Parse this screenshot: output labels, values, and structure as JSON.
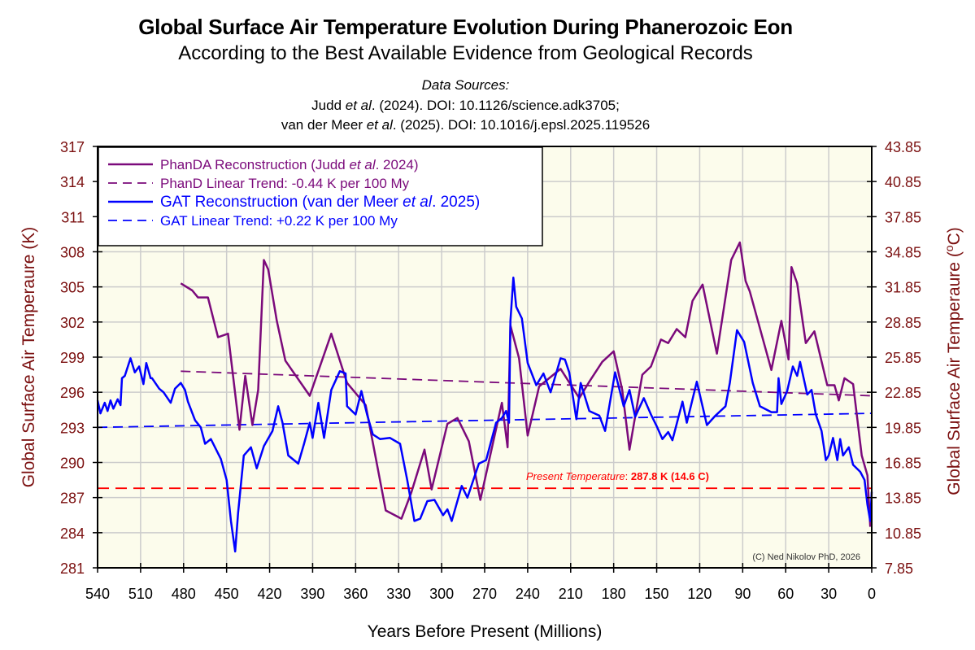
{
  "header": {
    "title": "Global Surface Air Temperature Evolution During Phanerozoic Eon",
    "subtitle": "According to the Best Available Evidence from Geological Records",
    "sources_label": "Data Sources:",
    "source_1_pre": "Judd ",
    "source_1_etal": "et al",
    "source_1_post": ". (2024). DOI: 10.1126/science.adk3705;",
    "source_2_pre": "van der Meer ",
    "source_2_etal": "et al",
    "source_2_post": ". (2025). DOI: 10.1016/j.epsl.2025.119526"
  },
  "chart_data": {
    "type": "line",
    "title": "Global Surface Air Temperature Evolution During Phanerozoic Eon",
    "xlabel": "Years Before Present (Millions)",
    "ylabel": "Global Surface Air Temperaure (K)",
    "y2label": "Global Surface Air Temperaure (°C)",
    "xlim": [
      540,
      0
    ],
    "ylim": [
      281,
      317
    ],
    "x_ticks": [
      540,
      510,
      480,
      450,
      420,
      390,
      360,
      330,
      300,
      270,
      240,
      210,
      180,
      150,
      120,
      90,
      60,
      30,
      0
    ],
    "y_ticks": [
      281,
      284,
      287,
      290,
      293,
      296,
      299,
      302,
      305,
      308,
      311,
      314,
      317
    ],
    "y2_ticks": [
      "7.85",
      "10.85",
      "13.85",
      "16.85",
      "19.85",
      "22.85",
      "25.85",
      "28.85",
      "31.85",
      "34.85",
      "37.85",
      "40.85",
      "43.85"
    ],
    "grid": true,
    "legend_position": "top-left",
    "colors": {
      "phanda": "#7b0a7b",
      "gat": "#0000ff",
      "present": "#ff0000",
      "axis_label": "#7b1010",
      "plot_bg": "#fcfcec",
      "grid": "#cccccc"
    },
    "series": [
      {
        "name": "PhanDA Reconstruction (Judd et al. 2024)",
        "key": "phanda",
        "style": "solid",
        "x": [
          482,
          474,
          470,
          463,
          456,
          449,
          441,
          437,
          432,
          428,
          424,
          421,
          415,
          409,
          392,
          377,
          366,
          353,
          339,
          328,
          321,
          312,
          307,
          296,
          289,
          281,
          273,
          258,
          254,
          252,
          246,
          240,
          232,
          217,
          204,
          197,
          188,
          180,
          174,
          169,
          160,
          154,
          147,
          142,
          136,
          130,
          125,
          118,
          108,
          98,
          92,
          88,
          85,
          70,
          63,
          58,
          56,
          52,
          46,
          40,
          31,
          26,
          23,
          19,
          13,
          7,
          3,
          1
        ],
        "y": [
          305.3,
          304.7,
          304.1,
          304.1,
          300.7,
          301.0,
          292.8,
          297.4,
          293.2,
          296.2,
          307.3,
          306.5,
          302.1,
          298.7,
          295.7,
          301.0,
          296.8,
          294.9,
          285.9,
          285.2,
          287.5,
          291.1,
          287.7,
          293.3,
          293.8,
          291.8,
          286.8,
          295.1,
          291.3,
          301.7,
          298.9,
          292.3,
          296.5,
          298.0,
          295.5,
          296.9,
          298.6,
          299.5,
          296.2,
          291.1,
          297.5,
          298.2,
          300.5,
          300.2,
          301.4,
          300.7,
          303.8,
          305.2,
          299.3,
          307.3,
          308.8,
          305.5,
          304.6,
          297.9,
          302.1,
          298.8,
          306.7,
          305.3,
          300.2,
          301.2,
          296.6,
          296.6,
          295.3,
          297.2,
          296.7,
          290.6,
          288.9,
          284.5
        ]
      },
      {
        "name": "PhanD Linear Trend: -0.44 K per 100 My",
        "key": "phanda_trend",
        "style": "dashed",
        "x": [
          482,
          0
        ],
        "y": [
          297.8,
          295.7
        ]
      },
      {
        "name": "GAT Reconstruction (van der Meer et al. 2025)",
        "key": "gat",
        "style": "solid",
        "x": [
          540,
          538,
          535,
          533,
          531,
          529,
          526,
          524,
          523,
          521,
          517,
          514,
          511,
          508,
          506,
          503,
          502,
          497,
          494,
          489,
          486,
          482,
          479,
          477,
          472,
          468,
          465,
          461,
          454,
          450,
          447,
          444,
          442,
          438,
          433,
          429,
          424,
          418,
          414,
          411,
          407,
          400,
          396,
          392,
          390,
          386,
          382,
          377,
          371,
          367,
          366,
          360,
          356,
          352,
          348,
          343,
          336,
          329,
          324,
          319,
          315,
          310,
          305,
          299,
          296,
          293,
          286,
          282,
          274,
          269,
          262,
          258,
          255,
          253,
          252,
          250,
          248,
          244,
          240,
          234,
          229,
          224,
          217,
          214,
          211,
          206,
          203,
          197,
          190,
          186,
          179,
          173,
          169,
          165,
          159,
          154,
          150,
          146,
          142,
          139,
          132,
          129,
          122,
          115,
          109,
          102,
          99,
          94,
          89,
          83,
          78,
          70,
          66,
          65,
          63,
          59,
          55,
          52,
          50,
          45,
          42,
          39,
          35,
          32,
          30,
          27,
          24,
          22,
          20,
          16,
          13,
          8,
          5,
          3,
          1,
          0
        ],
        "y": [
          295.3,
          294.2,
          295.1,
          294.4,
          295.3,
          294.6,
          295.4,
          294.9,
          297.2,
          297.4,
          298.9,
          297.7,
          298.2,
          296.7,
          298.5,
          297.2,
          297.2,
          296.3,
          296.0,
          295.1,
          296.3,
          296.8,
          296.2,
          295.2,
          293.6,
          293.0,
          291.6,
          292.0,
          290.3,
          288.5,
          285.0,
          282.4,
          285.7,
          290.6,
          291.3,
          289.5,
          291.4,
          292.7,
          294.8,
          293.4,
          290.6,
          289.9,
          291.6,
          293.4,
          292.1,
          295.1,
          292.1,
          296.2,
          297.8,
          297.6,
          294.8,
          294.1,
          296.1,
          294.1,
          292.4,
          292.0,
          292.1,
          291.6,
          288.5,
          285.0,
          285.2,
          286.7,
          286.8,
          285.5,
          286.0,
          285.0,
          288.0,
          287.0,
          289.9,
          290.2,
          293.4,
          293.8,
          294.4,
          293.4,
          302.1,
          305.8,
          303.3,
          302.3,
          298.5,
          296.6,
          297.6,
          296.0,
          298.9,
          298.8,
          297.7,
          293.7,
          296.8,
          294.4,
          294.0,
          292.7,
          297.7,
          294.8,
          296.2,
          293.9,
          295.5,
          294.1,
          293.1,
          292.0,
          292.6,
          291.9,
          295.2,
          293.4,
          296.9,
          293.2,
          294.0,
          294.8,
          296.8,
          301.3,
          300.3,
          296.8,
          294.8,
          294.3,
          294.3,
          297.2,
          295.0,
          296.1,
          298.2,
          297.4,
          298.6,
          295.8,
          296.2,
          294.1,
          292.7,
          290.2,
          290.6,
          292.1,
          290.2,
          292.0,
          290.6,
          291.3,
          289.8,
          289.2,
          288.5,
          286.4,
          285.0,
          287.5
        ]
      },
      {
        "name": "GAT Linear Trend: +0.22 K per 100 My",
        "key": "gat_trend",
        "style": "dashed",
        "x": [
          540,
          0
        ],
        "y": [
          293.0,
          294.2
        ]
      },
      {
        "name": "Present Temperature",
        "key": "present",
        "style": "dashed",
        "x": [
          540,
          0
        ],
        "y": [
          287.8,
          287.8
        ]
      }
    ],
    "annotations": {
      "present_label_italic": "Present Temperature",
      "present_label_colon": ": ",
      "present_label_value": "287.8 K (14.6 C)",
      "copyright": "(C) Ned Nikolov PhD, 2026"
    },
    "legend": [
      {
        "pre": "PhanDA Reconstruction (Judd ",
        "etal": "et al",
        "post": ". 2024)",
        "key": "phanda",
        "style": "solid"
      },
      {
        "pre": "PhanD Linear Trend: -0.44 K per 100 My",
        "etal": "",
        "post": "",
        "key": "phanda",
        "style": "dashed"
      },
      {
        "pre": "GAT Reconstruction (van der Meer ",
        "etal": "et al",
        "post": ". 2025)",
        "key": "gat",
        "style": "solid"
      },
      {
        "pre": "GAT Linear Trend: +0.22 K per 100 My",
        "etal": "",
        "post": "",
        "key": "gat",
        "style": "dashed"
      }
    ]
  }
}
